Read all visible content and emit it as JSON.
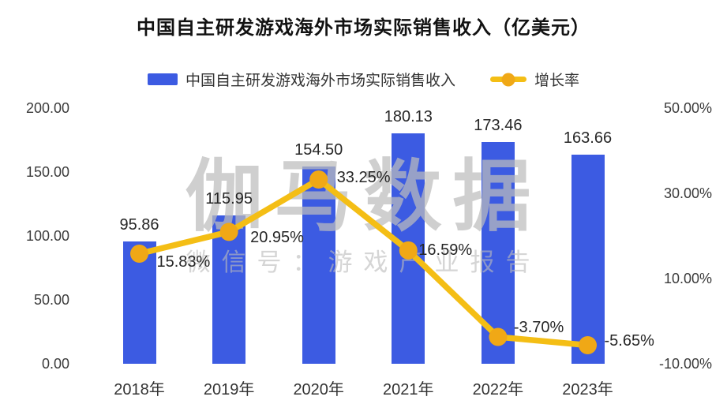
{
  "watermark": {
    "line1": "伽马数据",
    "line2": "微信号：游戏产业报告"
  },
  "colors": {
    "bar": "#3C5BE2",
    "line": "#F4BE15",
    "marker": "#F0A816",
    "label_text": "#262626",
    "axis_text": "#3B3B3B"
  },
  "chart_data": {
    "type": "bar+line combo",
    "title": "中国自主研发游戏海外市场实际销售收入（亿美元）",
    "categories": [
      "2018年",
      "2019年",
      "2020年",
      "2021年",
      "2022年",
      "2023年"
    ],
    "series": [
      {
        "name": "中国自主研发游戏海外市场实际销售收入",
        "type": "bar",
        "axis": "left",
        "values": [
          95.86,
          115.95,
          154.5,
          180.13,
          173.46,
          163.66
        ],
        "labels": [
          "95.86",
          "115.95",
          "154.50",
          "180.13",
          "173.46",
          "163.66"
        ]
      },
      {
        "name": "增长率",
        "type": "line",
        "axis": "right",
        "values": [
          15.83,
          20.95,
          33.25,
          16.59,
          -3.7,
          -5.65
        ],
        "labels": [
          "15.83%",
          "20.95%",
          "33.25%",
          "16.59%",
          "-3.70%",
          "-5.65%"
        ]
      }
    ],
    "left_axis": {
      "ticks": [
        "200.00",
        "150.00",
        "100.00",
        "50.00",
        "0.00"
      ],
      "min": 0,
      "max": 200
    },
    "right_axis": {
      "ticks": [
        "50.00%",
        "30.00%",
        "10.00%",
        "-10.00%"
      ],
      "min": -10,
      "max": 50
    },
    "grid": false,
    "legend_position": "top",
    "xlabel": "",
    "ylabel": ""
  }
}
